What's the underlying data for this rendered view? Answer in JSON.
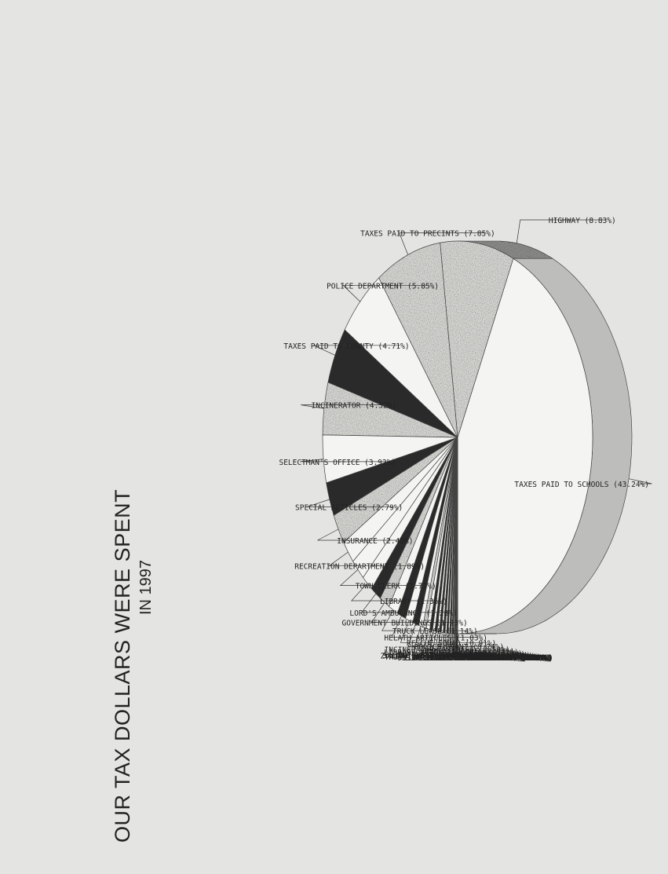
{
  "chart_data": {
    "type": "pie",
    "title": "OUR TAX DOLLARS WERE SPENT",
    "subtitle": "IN 1997",
    "slices": [
      {
        "label": "TAXES PAID TO SCHOOLS (43.24%)",
        "value": 43.24,
        "fill": "light"
      },
      {
        "label": "HIGHWAY (8.83%)",
        "value": 8.83,
        "fill": "speckle"
      },
      {
        "label": "TAXES PAID TO PRECINTS (7.85%)",
        "value": 7.85,
        "fill": "speckle"
      },
      {
        "label": "POLICE DEPARTMENT (5.85%)",
        "value": 5.85,
        "fill": "light"
      },
      {
        "label": "TAXES PAID TO COUNTY (4.71%)",
        "value": 4.71,
        "fill": "dark"
      },
      {
        "label": "INCINERATOR (4.32%)",
        "value": 4.32,
        "fill": "speckle"
      },
      {
        "label": "SELECTMAN'S OFFICE (3.92%)",
        "value": 3.92,
        "fill": "light"
      },
      {
        "label": "SPECIAL ARTICLES (2.79%)",
        "value": 2.79,
        "fill": "dark"
      },
      {
        "label": "INSURANCE (2.48%)",
        "value": 2.48,
        "fill": "speckle"
      },
      {
        "label": "RECREATION DEPARTMENT (1.89%)",
        "value": 1.89,
        "fill": "light"
      },
      {
        "label": "TOWN CLERK (1.77%)",
        "value": 1.77,
        "fill": "light"
      },
      {
        "label": "LIBRARY (1.36%)",
        "value": 1.36,
        "fill": "light"
      },
      {
        "label": "LORD'S AMBULANCE (1.28%)",
        "value": 1.28,
        "fill": "dark"
      },
      {
        "label": "GOVERNMENT BUILDINGS (1.23%)",
        "value": 1.23,
        "fill": "speckle"
      },
      {
        "label": "TRUCK LEASE (1.14%)",
        "value": 1.14,
        "fill": "light"
      },
      {
        "label": "HELATH ARTICLES (1.03%)",
        "value": 1.03,
        "fill": "dark"
      },
      {
        "label": "RESCUE SQUAD (0.91%)",
        "value": 0.91,
        "fill": "light"
      },
      {
        "label": "POLICE GRANT (0.74%)",
        "value": 0.74,
        "fill": "dark"
      },
      {
        "label": "INCINERATOR INTEREST (0.50%)",
        "value": 0.5,
        "fill": "light"
      },
      {
        "label": "DUMP CLOSURE (0.44%)",
        "value": 0.44,
        "fill": "speckle"
      },
      {
        "label": "LIBRARY NOTE PRINCIPAL (0.42%)",
        "value": 0.42,
        "fill": "light"
      },
      {
        "label": "WELFARE (0.33%)",
        "value": 0.33,
        "fill": "dark"
      },
      {
        "label": "LEGAL EXPENSES (0.28%)",
        "value": 0.28,
        "fill": "light"
      },
      {
        "label": "INTEREST ON TAN NOTES (0.27%)",
        "value": 0.27,
        "fill": "dark"
      },
      {
        "label": "SALARY BOARD OF SELECTMEN (0.26%)",
        "value": 0.26,
        "fill": "light"
      },
      {
        "label": "ZONING ENFORCEMENT OFFICER (0.23%)",
        "value": 0.23,
        "fill": "dark"
      },
      {
        "label": "FIRE WARDEN (0.23%)",
        "value": 0.23,
        "fill": "light"
      },
      {
        "label": "INCINERATOR PRINCIPAL (0.22%)",
        "value": 0.22,
        "fill": "dark"
      },
      {
        "label": "CEMETARY (0.19%)",
        "value": 0.19,
        "fill": "light"
      },
      {
        "label": "TRUCK LEASE 1996 PETERBUILT (0.18%)",
        "value": 0.18,
        "fill": "dark"
      },
      {
        "label": "SWER BOND (0.18%)",
        "value": 0.18,
        "fill": "light"
      },
      {
        "label": "ANIMAL CONTROL (0.16%)",
        "value": 0.16,
        "fill": "dark"
      },
      {
        "label": "TREASURER (0.13%)",
        "value": 0.13,
        "fill": "light"
      },
      {
        "label": "LIBRARY NOTE INTEREST (0.12%)",
        "value": 0.12,
        "fill": "dark"
      },
      {
        "label": "PLANNING BOARD (0.11%)",
        "value": 0.11,
        "fill": "light"
      },
      {
        "label": "OSSIPEE LAKE DAM AUTHORITY (0.09%)",
        "value": 0.09,
        "fill": "dark"
      },
      {
        "label": "ZBA (0.07%)",
        "value": 0.07,
        "fill": "light"
      },
      {
        "label": "TRUSTEE OF TRUST FUNDS (0.06%)",
        "value": 0.06,
        "fill": "dark"
      },
      {
        "label": "ELECTIONS & REGISTRATIONS (0.06%)",
        "value": 0.06,
        "fill": "light"
      },
      {
        "label": "CONSERVATION AGENT (0.05%)",
        "value": 0.05,
        "fill": "dark"
      },
      {
        "label": "HIGHWAY STREET LIGHTING (0.05%)",
        "value": 0.05,
        "fill": "light"
      },
      {
        "label": "CONSERVATION (0.02%)",
        "value": 0.02,
        "fill": "dark"
      },
      {
        "label": "ECONOMIC DEVELOPMENT (0.01%)",
        "value": 0.01,
        "fill": "light"
      }
    ],
    "legend": "none"
  }
}
